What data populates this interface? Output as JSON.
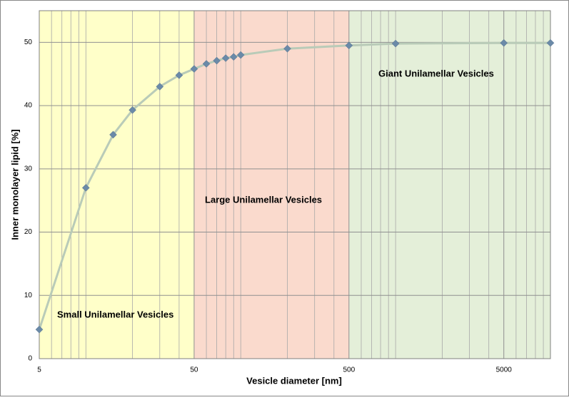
{
  "chart_data": {
    "type": "line",
    "x_label": "Vesicle diameter [nm]",
    "y_label": "Inner monolayer lipid [%]",
    "log_x": true,
    "xlim": [
      5,
      10000
    ],
    "xticks": [
      5,
      50,
      500,
      5000
    ],
    "xminorticks": [
      6,
      7,
      8,
      9,
      10,
      20,
      30,
      40,
      60,
      70,
      80,
      90,
      100,
      200,
      300,
      400,
      600,
      700,
      800,
      900,
      1000,
      2000,
      3000,
      4000,
      6000,
      7000,
      8000,
      9000
    ],
    "ylim": [
      0,
      55
    ],
    "yticks": [
      0,
      10,
      20,
      30,
      40,
      50
    ],
    "grid": true,
    "regions": [
      {
        "range": [
          5,
          50
        ],
        "color": "#ffffc9",
        "label": "Small Unilamellar Vesicles"
      },
      {
        "range": [
          50,
          500
        ],
        "color": "#fadacd",
        "label": "Large Unilamellar Vesicles"
      },
      {
        "range": [
          500,
          10000
        ],
        "color": "#e4efd9",
        "label": "Giant Unilamellar Vesicles"
      }
    ],
    "x": [
      5,
      10,
      15,
      20,
      30,
      40,
      50,
      60,
      70,
      80,
      90,
      100,
      200,
      500,
      1000,
      5000,
      10000
    ],
    "series": [
      {
        "color": "#b9cbb8",
        "marker_color": "#6b8aa8",
        "values": [
          4.6,
          27.0,
          35.4,
          39.3,
          43.0,
          44.8,
          45.8,
          46.6,
          47.1,
          47.5,
          47.7,
          48.0,
          49.0,
          49.5,
          49.8,
          49.9,
          49.9
        ]
      }
    ]
  }
}
